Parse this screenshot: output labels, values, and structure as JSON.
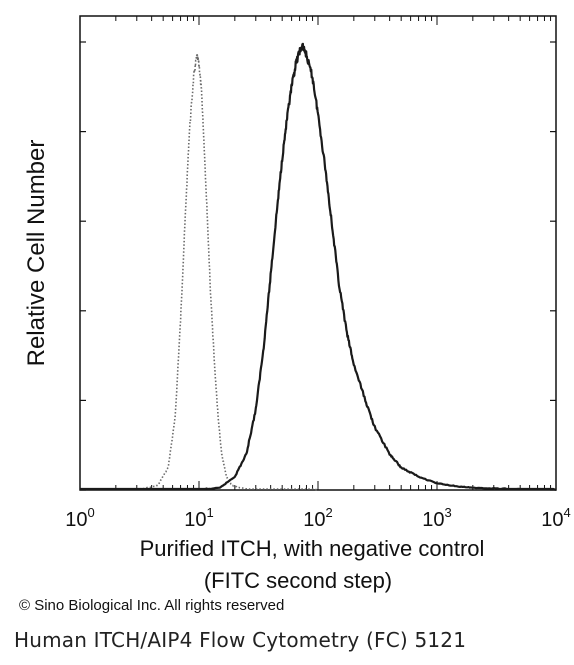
{
  "chart_data": {
    "type": "line",
    "title": "",
    "xlabel_line1": "Purified ITCH, with negative control",
    "xlabel_line2": "(FITC second step)",
    "ylabel": "Relative Cell Number",
    "xscale": "log",
    "xlim": [
      1,
      10000
    ],
    "x_ticks": [
      {
        "base": "10",
        "exp": "0"
      },
      {
        "base": "10",
        "exp": "1"
      },
      {
        "base": "10",
        "exp": "2"
      },
      {
        "base": "10",
        "exp": "3"
      },
      {
        "base": "10",
        "exp": "4"
      }
    ],
    "ylim": [
      0,
      1.0
    ],
    "y_tick_values": [
      0,
      0.2,
      0.4,
      0.6,
      0.8,
      1.0
    ],
    "grid": false,
    "legend": "none",
    "series": [
      {
        "style": "dotted",
        "color": "#6a6a6a",
        "x": [
          1,
          3,
          4.5,
          5.5,
          6.3,
          7.0,
          7.7,
          8.3,
          9.0,
          9.6,
          10.0,
          10.5,
          11.0,
          11.7,
          12.5,
          13.5,
          14.5,
          15.5,
          17,
          19,
          22,
          30,
          100
        ],
        "y": [
          0.0,
          0.0,
          0.01,
          0.05,
          0.16,
          0.38,
          0.62,
          0.8,
          0.92,
          0.97,
          0.95,
          0.89,
          0.78,
          0.62,
          0.44,
          0.28,
          0.16,
          0.08,
          0.03,
          0.01,
          0.005,
          0.0,
          0.0
        ]
      },
      {
        "style": "solid",
        "color": "#1a1a1a",
        "x": [
          1,
          10,
          15,
          20,
          25,
          30,
          35,
          40,
          45,
          50,
          55,
          60,
          65,
          70,
          75,
          80,
          90,
          100,
          115,
          130,
          150,
          175,
          200,
          250,
          300,
          400,
          500,
          700,
          1000,
          1500,
          2000,
          3000,
          5000,
          10000
        ],
        "y": [
          0.0,
          0.0,
          0.005,
          0.03,
          0.08,
          0.18,
          0.32,
          0.48,
          0.62,
          0.74,
          0.83,
          0.9,
          0.95,
          0.98,
          0.99,
          0.97,
          0.92,
          0.84,
          0.72,
          0.6,
          0.46,
          0.35,
          0.28,
          0.2,
          0.14,
          0.08,
          0.05,
          0.03,
          0.015,
          0.008,
          0.005,
          0.003,
          0.001,
          0.0
        ]
      }
    ]
  },
  "footer": {
    "copyright": "© Sino Biological Inc. All rights reserved",
    "caption": "Human ITCH/AIP4 Flow Cytometry (FC) 5121"
  }
}
